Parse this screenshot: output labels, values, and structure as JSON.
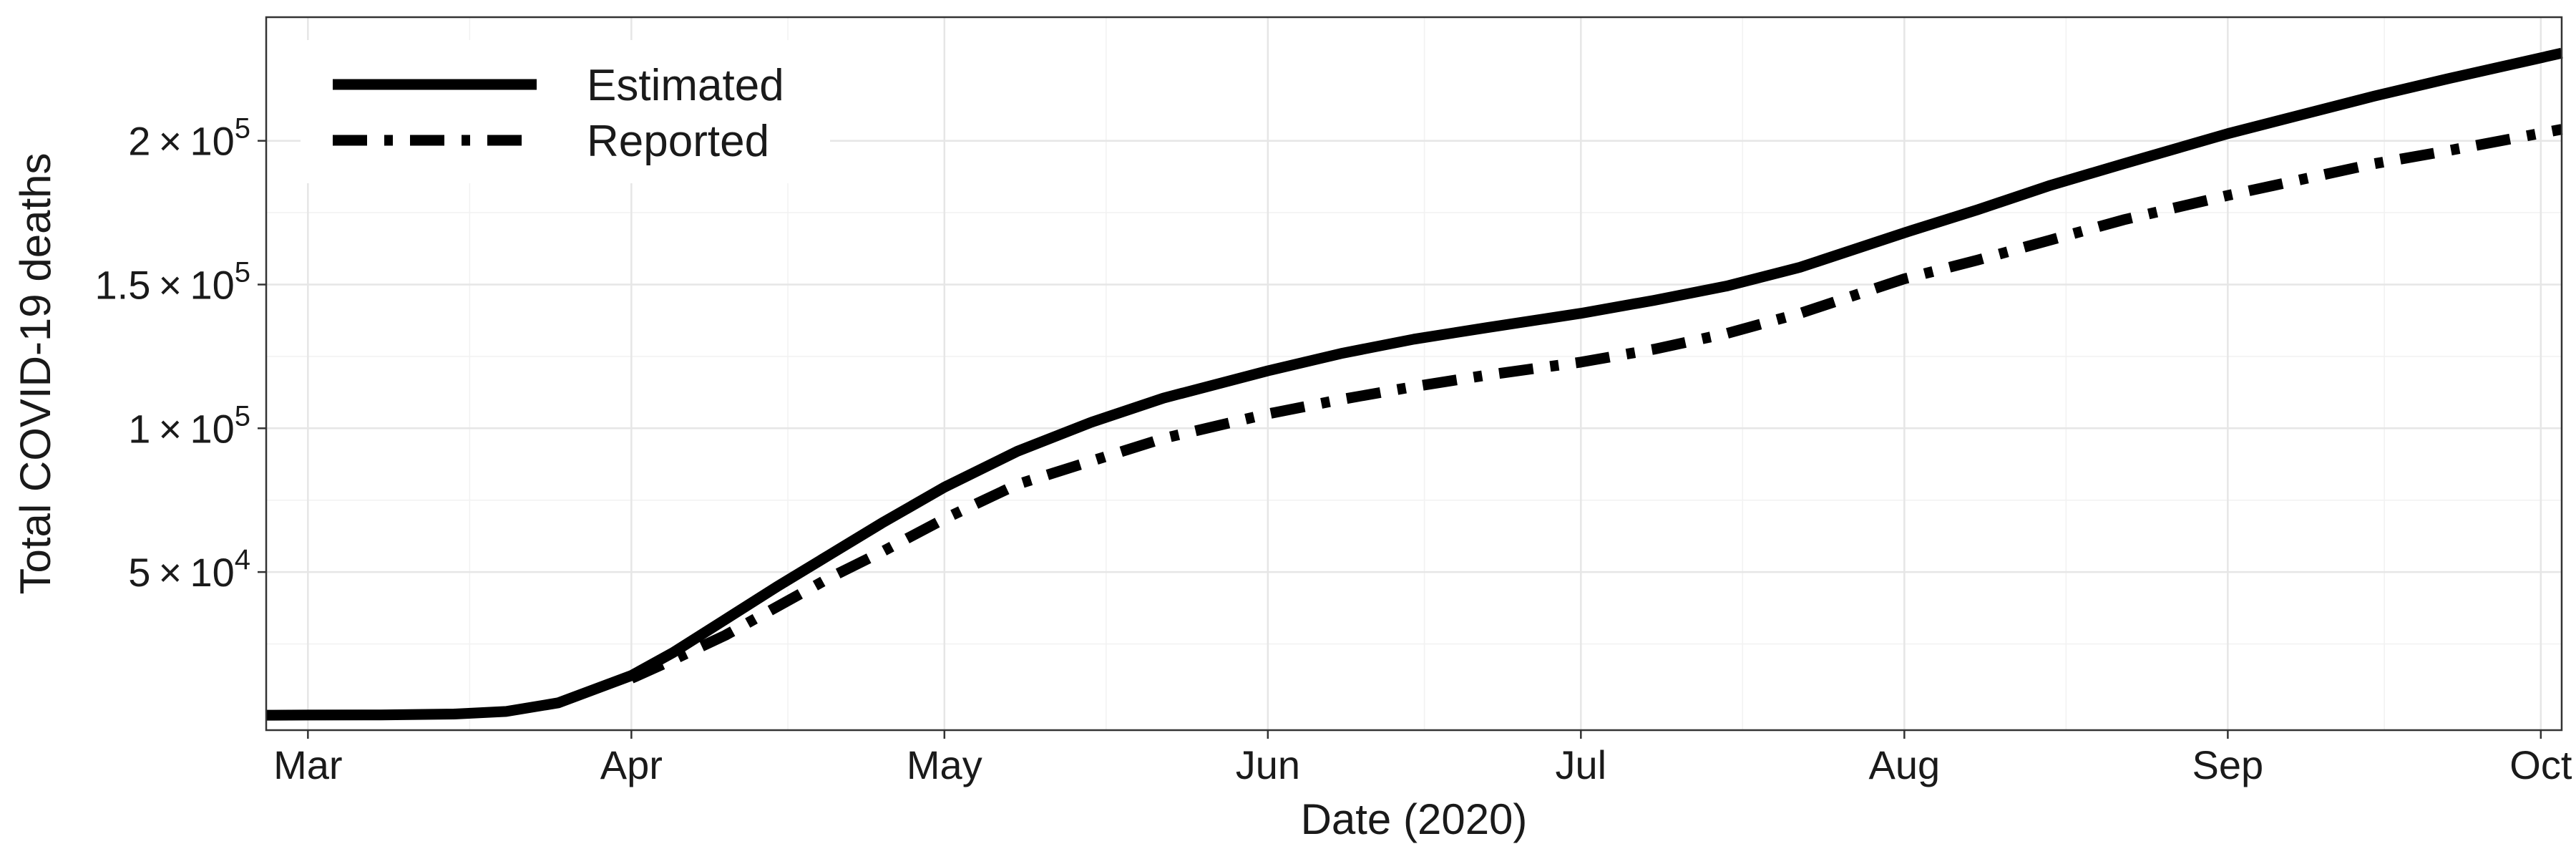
{
  "chart_data": {
    "type": "line",
    "xlabel": "Date (2020)",
    "ylabel": "Total COVID-19 deaths",
    "xlim": [
      "2020-02-26",
      "2020-10-03"
    ],
    "ylim": [
      -5000,
      243000
    ],
    "x_ticks": [
      {
        "date": "2020-03-01",
        "label": "Mar"
      },
      {
        "date": "2020-04-01",
        "label": "Apr"
      },
      {
        "date": "2020-05-01",
        "label": "May"
      },
      {
        "date": "2020-06-01",
        "label": "Jun"
      },
      {
        "date": "2020-07-01",
        "label": "Jul"
      },
      {
        "date": "2020-08-01",
        "label": "Aug"
      },
      {
        "date": "2020-09-01",
        "label": "Sep"
      },
      {
        "date": "2020-10-01",
        "label": "Oct"
      }
    ],
    "y_ticks": [
      {
        "value": 50000,
        "coef": "5",
        "exp": "4"
      },
      {
        "value": 100000,
        "coef": "1",
        "exp": "5"
      },
      {
        "value": 150000,
        "coef": "1.5",
        "exp": "5"
      },
      {
        "value": 200000,
        "coef": "2",
        "exp": "5"
      }
    ],
    "grid": true,
    "legend_position": "top-left",
    "series": [
      {
        "name": "Estimated",
        "line_style": "solid",
        "color": "#000000",
        "x": [
          "2020-02-26",
          "2020-03-01",
          "2020-03-08",
          "2020-03-15",
          "2020-03-20",
          "2020-03-25",
          "2020-04-01",
          "2020-04-05",
          "2020-04-10",
          "2020-04-15",
          "2020-04-20",
          "2020-04-25",
          "2020-05-01",
          "2020-05-08",
          "2020-05-15",
          "2020-05-22",
          "2020-06-01",
          "2020-06-08",
          "2020-06-15",
          "2020-06-22",
          "2020-07-01",
          "2020-07-08",
          "2020-07-15",
          "2020-07-22",
          "2020-08-01",
          "2020-08-08",
          "2020-08-15",
          "2020-08-22",
          "2020-09-01",
          "2020-09-08",
          "2020-09-15",
          "2020-09-22",
          "2020-10-03"
        ],
        "y": [
          200,
          250,
          300,
          600,
          1500,
          4500,
          14000,
          22000,
          33500,
          45000,
          56000,
          67000,
          79500,
          92000,
          102000,
          110500,
          120000,
          126000,
          131000,
          135000,
          140000,
          144500,
          149500,
          156000,
          168000,
          176000,
          184500,
          192000,
          202500,
          209000,
          215500,
          221500,
          230500
        ]
      },
      {
        "name": "Reported",
        "line_style": "dashdot",
        "color": "#000000",
        "x": [
          "2020-04-01",
          "2020-04-05",
          "2020-04-10",
          "2020-04-15",
          "2020-04-20",
          "2020-04-25",
          "2020-05-01",
          "2020-05-08",
          "2020-05-15",
          "2020-05-22",
          "2020-06-01",
          "2020-06-08",
          "2020-06-15",
          "2020-06-22",
          "2020-07-01",
          "2020-07-08",
          "2020-07-15",
          "2020-07-22",
          "2020-08-01",
          "2020-08-08",
          "2020-08-15",
          "2020-08-22",
          "2020-09-01",
          "2020-09-08",
          "2020-09-15",
          "2020-09-22",
          "2020-10-03"
        ],
        "y": [
          13000,
          19500,
          28000,
          38000,
          48000,
          57000,
          68500,
          80500,
          88500,
          96500,
          105000,
          110000,
          114500,
          118500,
          123000,
          127500,
          133000,
          140000,
          152000,
          158500,
          165500,
          172500,
          181000,
          186500,
          192000,
          196500,
          204000
        ]
      }
    ]
  }
}
